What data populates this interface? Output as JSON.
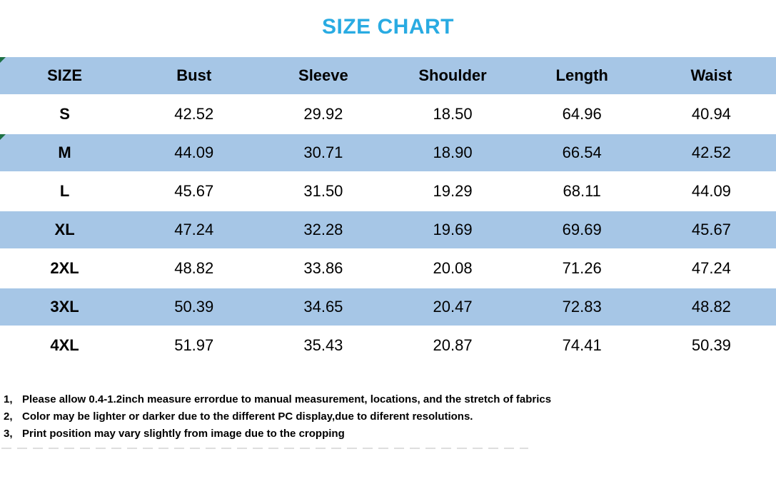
{
  "title": "SIZE CHART",
  "colors": {
    "title_accent": "#29abe2",
    "row_highlight": "#a6c6e6",
    "text": "#000000",
    "background": "#ffffff",
    "cell_flag_green": "#1d7044"
  },
  "icons": {
    "cell_flag": "excel-green-corner-triangle"
  },
  "table": {
    "headers": [
      "SIZE",
      "Bust",
      "Sleeve",
      "Shoulder",
      "Length",
      "Waist"
    ],
    "rows": [
      {
        "size": "S",
        "values": [
          "42.52",
          "29.92",
          "18.50",
          "64.96",
          "40.94"
        ]
      },
      {
        "size": "M",
        "values": [
          "44.09",
          "30.71",
          "18.90",
          "66.54",
          "42.52"
        ]
      },
      {
        "size": "L",
        "values": [
          "45.67",
          "31.50",
          "19.29",
          "68.11",
          "44.09"
        ]
      },
      {
        "size": "XL",
        "values": [
          "47.24",
          "32.28",
          "19.69",
          "69.69",
          "45.67"
        ]
      },
      {
        "size": "2XL",
        "values": [
          "48.82",
          "33.86",
          "20.08",
          "71.26",
          "47.24"
        ]
      },
      {
        "size": "3XL",
        "values": [
          "50.39",
          "34.65",
          "20.47",
          "72.83",
          "48.82"
        ]
      },
      {
        "size": "4XL",
        "values": [
          "51.97",
          "35.43",
          "20.87",
          "74.41",
          "50.39"
        ]
      }
    ]
  },
  "notes": [
    {
      "num": "1,",
      "text": "Please allow 0.4-1.2inch measure errordue to manual measurement, locations, and the stretch of fabrics"
    },
    {
      "num": "2,",
      "text": "Color may be lighter or darker due to the different PC display,due to diferent resolutions."
    },
    {
      "num": "3,",
      "text": "Print position may vary slightly from image due to the cropping"
    }
  ],
  "chart_data": {
    "type": "table",
    "title": "SIZE CHART",
    "columns": [
      "SIZE",
      "Bust",
      "Sleeve",
      "Shoulder",
      "Length",
      "Waist"
    ],
    "rows": [
      [
        "S",
        42.52,
        29.92,
        18.5,
        64.96,
        40.94
      ],
      [
        "M",
        44.09,
        30.71,
        18.9,
        66.54,
        42.52
      ],
      [
        "L",
        45.67,
        31.5,
        19.29,
        68.11,
        44.09
      ],
      [
        "XL",
        47.24,
        32.28,
        19.69,
        69.69,
        45.67
      ],
      [
        "2XL",
        48.82,
        33.86,
        20.08,
        71.26,
        47.24
      ],
      [
        "3XL",
        50.39,
        34.65,
        20.47,
        72.83,
        48.82
      ],
      [
        "4XL",
        51.97,
        35.43,
        20.87,
        74.41,
        50.39
      ]
    ],
    "notes_under_table": 3,
    "row_striping": "alternating header+even rows light blue #a6c6e6, odd rows white"
  }
}
